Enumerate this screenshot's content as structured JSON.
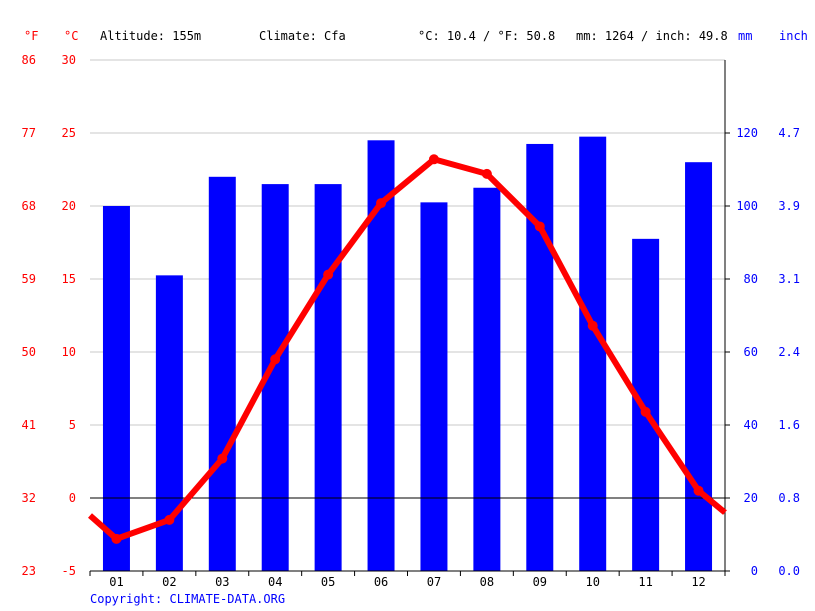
{
  "header": {
    "unit_f": "°F",
    "unit_c": "°C",
    "altitude": "Altitude: 155m",
    "climate": "Climate: Cfa",
    "temp_avg": "°C: 10.4 / °F: 50.8",
    "precip_total": "mm: 1264 / inch: 49.8",
    "unit_mm": "mm",
    "unit_inch": "inch"
  },
  "footer": {
    "copyright": "Copyright: CLIMATE-DATA.ORG"
  },
  "colors": {
    "temp": "#ff0000",
    "precip": "#0000ff",
    "grid": "#c8c8c8"
  },
  "chart_data": {
    "type": "bar",
    "categories": [
      "01",
      "02",
      "03",
      "04",
      "05",
      "06",
      "07",
      "08",
      "09",
      "10",
      "11",
      "12"
    ],
    "series": [
      {
        "type": "bar",
        "axis": "precip",
        "values": [
          100,
          81,
          108,
          106,
          106,
          118,
          101,
          105,
          117,
          119,
          91,
          112
        ]
      },
      {
        "type": "line",
        "axis": "temp",
        "values": [
          -2.8,
          -1.5,
          2.7,
          9.5,
          15.3,
          20.2,
          23.2,
          22.2,
          18.6,
          11.8,
          5.9,
          0.5
        ]
      }
    ],
    "temp_line_edges": {
      "left": -1.2,
      "right": -1.0
    },
    "temp_axis": {
      "ylim": [
        -5,
        30
      ],
      "ticks_c": [
        "-5",
        "0",
        "5",
        "10",
        "15",
        "20",
        "25",
        "30"
      ],
      "ticks_f": [
        "23",
        "32",
        "41",
        "50",
        "59",
        "68",
        "77",
        "86"
      ]
    },
    "precip_axis": {
      "ylim": [
        0,
        140
      ],
      "ticks_mm": [
        "0",
        "20",
        "40",
        "60",
        "80",
        "100",
        "120"
      ],
      "ticks_inch": [
        "0.0",
        "0.8",
        "1.6",
        "2.4",
        "3.1",
        "3.9",
        "4.7"
      ]
    },
    "grid": true
  }
}
